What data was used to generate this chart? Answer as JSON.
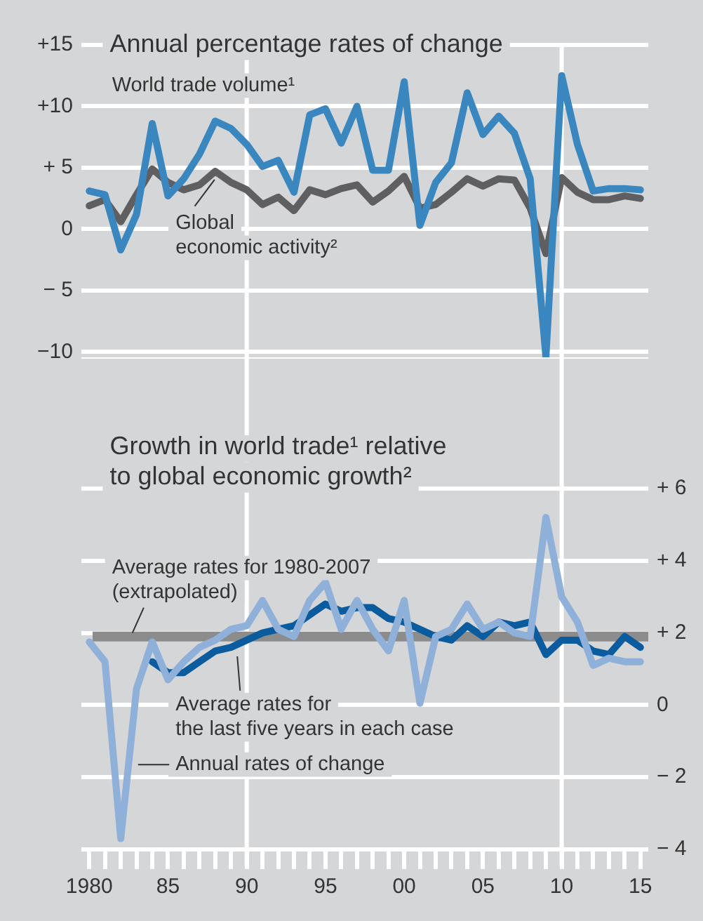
{
  "chart_data": [
    {
      "type": "line",
      "title": "Annual percentage rates of change",
      "x": [
        1980,
        1981,
        1982,
        1983,
        1984,
        1985,
        1986,
        1987,
        1988,
        1989,
        1990,
        1991,
        1992,
        1993,
        1994,
        1995,
        1996,
        1997,
        1998,
        1999,
        2000,
        2001,
        2002,
        2003,
        2004,
        2005,
        2006,
        2007,
        2008,
        2009,
        2010,
        2011,
        2012,
        2013,
        2014,
        2015
      ],
      "series": [
        {
          "name": "World trade volume¹",
          "color": "#3a87c0",
          "values": [
            3.1,
            2.8,
            -1.7,
            1.2,
            8.6,
            2.7,
            4.1,
            6.1,
            8.8,
            8.2,
            6.9,
            5.1,
            5.6,
            3.0,
            9.3,
            9.8,
            7.0,
            10.0,
            4.8,
            4.8,
            12.0,
            0.3,
            3.8,
            5.4,
            11.1,
            7.7,
            9.2,
            7.8,
            4.1,
            -10.4,
            12.5,
            6.9,
            3.1,
            3.3,
            3.3,
            3.2
          ]
        },
        {
          "name": "Global economic activity²",
          "color": "#5f5f61",
          "values": [
            1.9,
            2.4,
            0.6,
            2.8,
            4.9,
            3.8,
            3.2,
            3.6,
            4.7,
            3.8,
            3.2,
            2.0,
            2.6,
            1.5,
            3.2,
            2.8,
            3.3,
            3.6,
            2.2,
            3.1,
            4.3,
            1.7,
            2.0,
            3.0,
            4.1,
            3.5,
            4.1,
            4.0,
            1.7,
            -2.0,
            4.2,
            3.0,
            2.4,
            2.4,
            2.7,
            2.5
          ]
        }
      ],
      "xlim": [
        1979.5,
        2015.5
      ],
      "ylim": [
        -10.5,
        15
      ],
      "yticks": [
        {
          "value": 15,
          "label": "+15"
        },
        {
          "value": 10,
          "label": "+10"
        },
        {
          "value": 5,
          "label": "+ 5"
        },
        0,
        {
          "value": -5,
          "label": "− 5"
        },
        {
          "value": -10,
          "label": "−10"
        }
      ],
      "grid": "y",
      "tick_labels": "y",
      "ref_lines": [
        {
          "axis": "x",
          "value": 1990,
          "color": "#ffffff"
        },
        {
          "axis": "x",
          "value": 2010,
          "color": "#ffffff"
        }
      ]
    },
    {
      "type": "line",
      "title": "Growth in world trade¹ relative to global economic growth²",
      "x": [
        1980,
        1981,
        1982,
        1983,
        1984,
        1985,
        1986,
        1987,
        1988,
        1989,
        1990,
        1991,
        1992,
        1993,
        1994,
        1995,
        1996,
        1997,
        1998,
        1999,
        2000,
        2001,
        2002,
        2003,
        2004,
        2005,
        2006,
        2007,
        2008,
        2009,
        2010,
        2011,
        2012,
        2013,
        2014,
        2015
      ],
      "series": [
        {
          "name": "Annual rates of change",
          "color": "#8fb0d8",
          "values": [
            1.75,
            1.2,
            -3.7,
            0.45,
            1.75,
            0.7,
            1.2,
            1.6,
            1.8,
            2.1,
            2.2,
            2.9,
            2.1,
            1.9,
            2.9,
            3.4,
            2.1,
            2.9,
            2.1,
            1.5,
            2.9,
            0.05,
            1.9,
            2.1,
            2.8,
            2.1,
            2.3,
            2.0,
            1.9,
            5.2,
            3.0,
            2.3,
            1.1,
            1.3,
            1.2,
            1.2
          ]
        },
        {
          "name": "Average rates for the last five years in each case",
          "color": "#0b5c9e",
          "values": [
            null,
            null,
            null,
            null,
            1.2,
            0.9,
            0.9,
            1.2,
            1.5,
            1.6,
            1.8,
            2.0,
            2.1,
            2.2,
            2.5,
            2.8,
            2.6,
            2.7,
            2.7,
            2.4,
            2.3,
            2.1,
            1.9,
            1.8,
            2.2,
            1.9,
            2.3,
            2.2,
            2.3,
            1.4,
            1.8,
            1.8,
            1.5,
            1.4,
            1.9,
            1.6
          ]
        }
      ],
      "xlim": [
        1979.5,
        2015.5
      ],
      "xticks": [
        {
          "value": 1980,
          "label": "1980"
        },
        {
          "value": 1981,
          "label": null
        },
        {
          "value": 1982,
          "label": null
        },
        {
          "value": 1983,
          "label": null
        },
        {
          "value": 1984,
          "label": null
        },
        {
          "value": 1985,
          "label": "85"
        },
        {
          "value": 1986,
          "label": null
        },
        {
          "value": 1987,
          "label": null
        },
        {
          "value": 1988,
          "label": null
        },
        {
          "value": 1989,
          "label": null
        },
        {
          "value": 1990,
          "label": "90"
        },
        {
          "value": 1991,
          "label": null
        },
        {
          "value": 1992,
          "label": null
        },
        {
          "value": 1993,
          "label": null
        },
        {
          "value": 1994,
          "label": null
        },
        {
          "value": 1995,
          "label": "95"
        },
        {
          "value": 1996,
          "label": null
        },
        {
          "value": 1997,
          "label": null
        },
        {
          "value": 1998,
          "label": null
        },
        {
          "value": 1999,
          "label": null
        },
        {
          "value": 2000,
          "label": "00"
        },
        {
          "value": 2001,
          "label": null
        },
        {
          "value": 2002,
          "label": null
        },
        {
          "value": 2003,
          "label": null
        },
        {
          "value": 2004,
          "label": null
        },
        {
          "value": 2005,
          "label": "05"
        },
        {
          "value": 2006,
          "label": null
        },
        {
          "value": 2007,
          "label": null
        },
        {
          "value": 2008,
          "label": null
        },
        {
          "value": 2009,
          "label": null
        },
        {
          "value": 2010,
          "label": "10"
        },
        {
          "value": 2011,
          "label": null
        },
        {
          "value": 2012,
          "label": null
        },
        {
          "value": 2013,
          "label": null
        },
        {
          "value": 2014,
          "label": null
        },
        {
          "value": 2015,
          "label": "15"
        }
      ],
      "ylim": [
        -4,
        6
      ],
      "yticks": [
        {
          "value": 6,
          "label": "+ 6"
        },
        {
          "value": 4,
          "label": "+ 4"
        },
        {
          "value": 2,
          "label": "+ 2"
        },
        0,
        {
          "value": -2,
          "label": "− 2"
        },
        {
          "value": -4,
          "label": "− 4"
        }
      ],
      "grid": "y",
      "ref_lines": [
        {
          "axis": "x",
          "value": 1990,
          "color": "#ffffff"
        },
        {
          "axis": "x",
          "value": 2010,
          "color": "#ffffff"
        },
        {
          "axis": "y",
          "value": 1.9,
          "color": "#8c8c8c",
          "label": "Average rates for 1980-2007 (extrapolated)"
        }
      ]
    }
  ]
}
